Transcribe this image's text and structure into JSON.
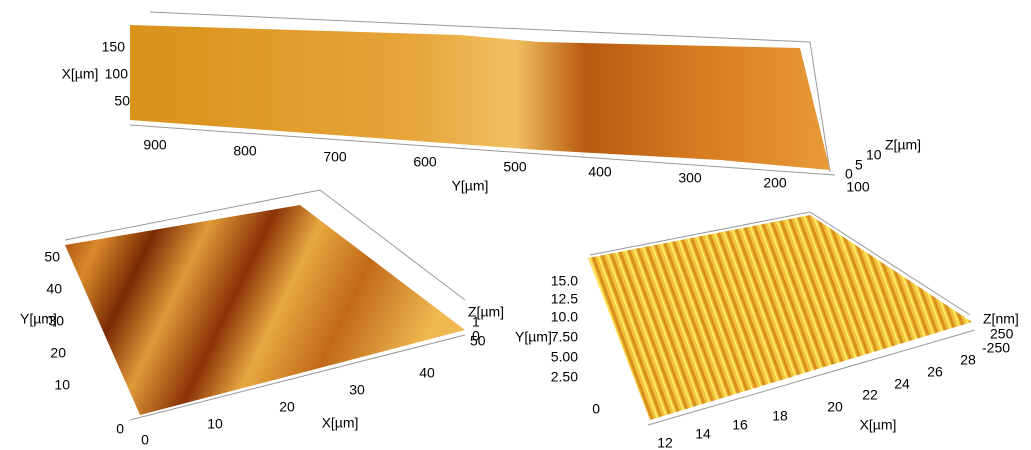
{
  "panels": [
    {
      "x_axis": {
        "label": "X[µm]",
        "ticks": [
          "150",
          "100",
          "50"
        ]
      },
      "y_axis": {
        "label": "Y[µm]",
        "ticks": [
          "900",
          "800",
          "700",
          "600",
          "500",
          "400",
          "300",
          "200",
          "100"
        ]
      },
      "z_axis": {
        "label": "Z[µm]",
        "ticks": [
          "0",
          "5",
          "10"
        ]
      }
    },
    {
      "y_axis": {
        "label": "Y[µm]",
        "ticks": [
          "50",
          "40",
          "30",
          "20",
          "10",
          "0"
        ]
      },
      "x_axis": {
        "label": "X[µm]",
        "ticks": [
          "0",
          "10",
          "20",
          "30",
          "40",
          "50"
        ]
      },
      "z_axis": {
        "label": "Z[µm]",
        "ticks": [
          "1",
          "0"
        ]
      }
    },
    {
      "y_axis": {
        "label": "Y[µm]",
        "ticks": [
          "15.0",
          "12.5",
          "10.0",
          "7.50",
          "5.00",
          "2.50",
          "0"
        ]
      },
      "x_axis": {
        "label": "X[µm]",
        "ticks": [
          "12",
          "14",
          "16",
          "18",
          "20",
          "22",
          "24",
          "26",
          "28"
        ]
      },
      "z_axis": {
        "label": "Z[nm]",
        "ticks": [
          "250",
          "-250"
        ]
      }
    }
  ]
}
